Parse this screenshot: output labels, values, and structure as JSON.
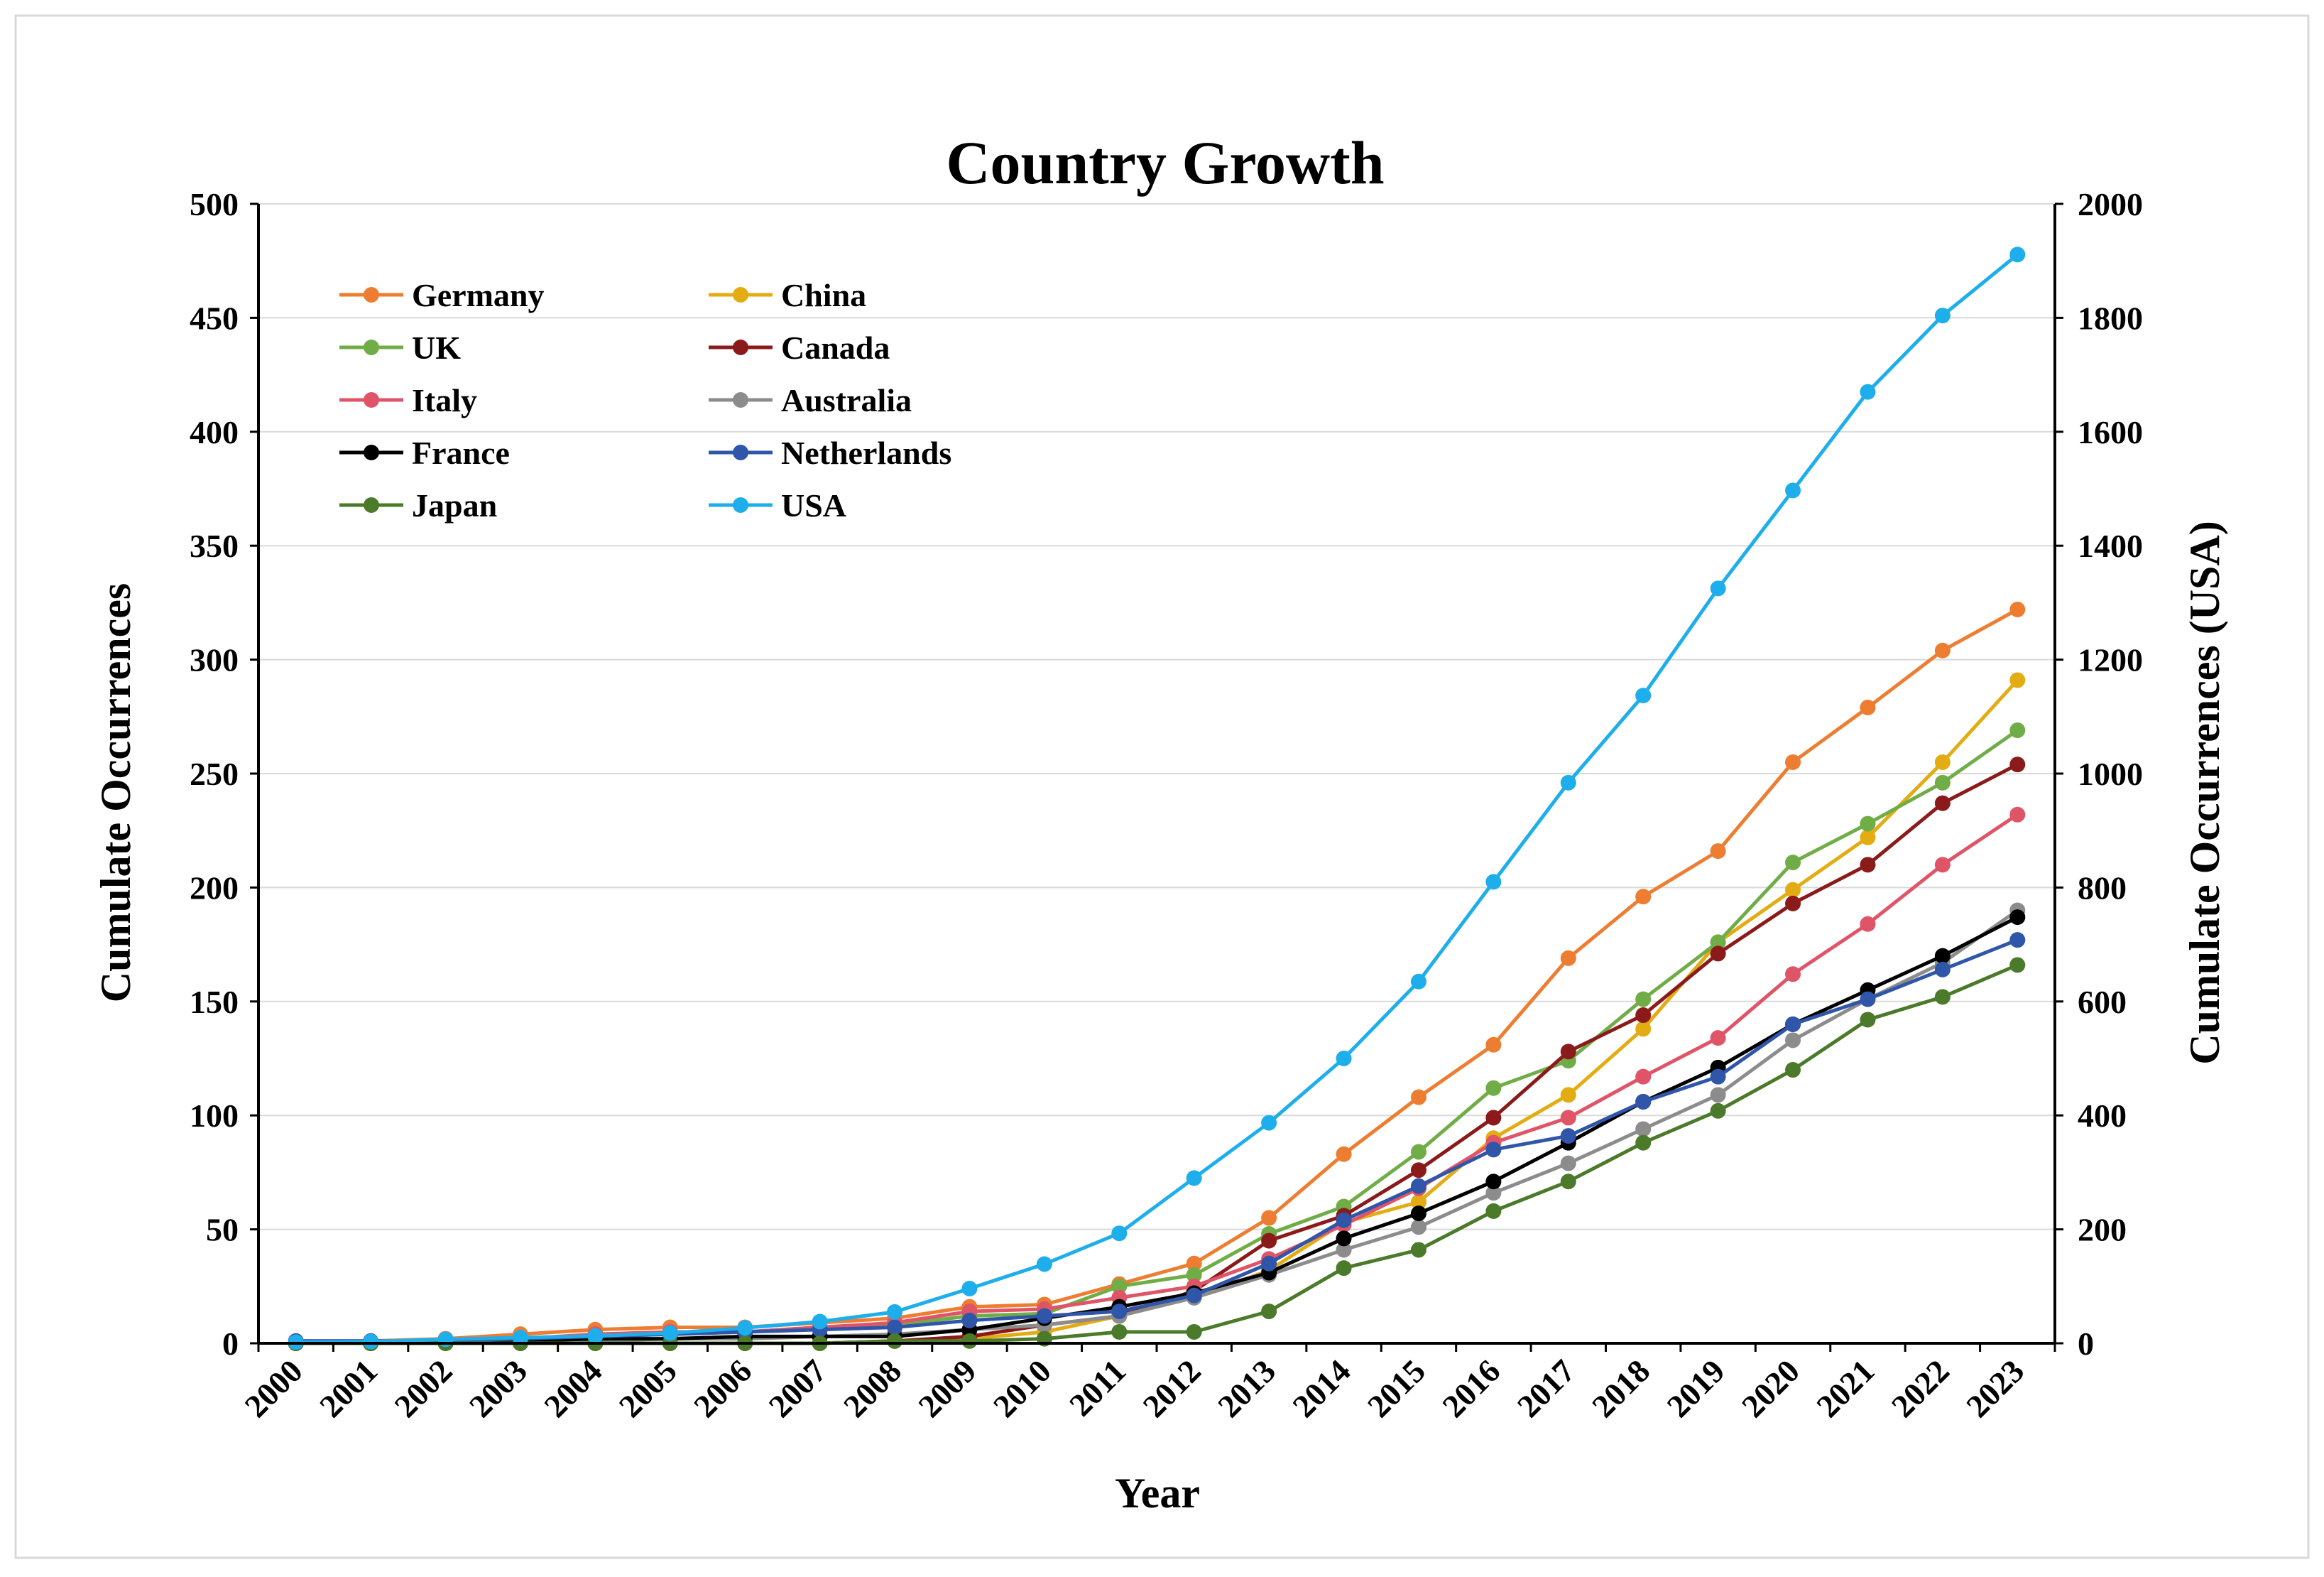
{
  "chart_data": {
    "type": "line",
    "title": "Country Growth",
    "xlabel": "Year",
    "ylabel": "Cumulate Occurrences",
    "y2label": "Cumulate Occurrences (USA)",
    "ylim": [
      0,
      500
    ],
    "y2lim": [
      0,
      2000
    ],
    "yticks": [
      0,
      50,
      100,
      150,
      200,
      250,
      300,
      350,
      400,
      450,
      500
    ],
    "y2ticks": [
      0,
      200,
      400,
      600,
      800,
      1000,
      1200,
      1400,
      1600,
      1800,
      2000
    ],
    "grid": true,
    "legend_position": "top-left",
    "x": [
      "2000",
      "2001",
      "2002",
      "2003",
      "2004",
      "2005",
      "2006",
      "2007",
      "2008",
      "2009",
      "2010",
      "2011",
      "2012",
      "2013",
      "2014",
      "2015",
      "2016",
      "2017",
      "2018",
      "2019",
      "2020",
      "2021",
      "2022",
      "2023"
    ],
    "series": [
      {
        "name": "Germany",
        "color": "#ED7D31",
        "axis": "left",
        "values": [
          1,
          1,
          2,
          4,
          6,
          7,
          7,
          9,
          11,
          16,
          17,
          26,
          35,
          55,
          83,
          108,
          131,
          169,
          196,
          216,
          255,
          279,
          304,
          322
        ]
      },
      {
        "name": "China",
        "color": "#E3AC12",
        "axis": "left",
        "values": [
          0,
          0,
          0,
          0,
          0,
          0,
          0,
          0,
          1,
          2,
          5,
          12,
          20,
          32,
          53,
          62,
          90,
          109,
          138,
          176,
          199,
          222,
          255,
          291
        ]
      },
      {
        "name": "UK",
        "color": "#70AD47",
        "axis": "left",
        "values": [
          0,
          0,
          1,
          2,
          3,
          4,
          5,
          7,
          8,
          12,
          13,
          25,
          30,
          48,
          60,
          84,
          112,
          124,
          151,
          176,
          211,
          228,
          246,
          269
        ]
      },
      {
        "name": "Canada",
        "color": "#8B1A1A",
        "axis": "left",
        "values": [
          0,
          0,
          0,
          0,
          0,
          0,
          0,
          0,
          1,
          3,
          8,
          12,
          23,
          45,
          56,
          76,
          99,
          128,
          144,
          171,
          193,
          210,
          237,
          254
        ]
      },
      {
        "name": "Italy",
        "color": "#E05468",
        "axis": "left",
        "values": [
          0,
          0,
          1,
          2,
          4,
          5,
          5,
          7,
          9,
          14,
          15,
          20,
          25,
          37,
          52,
          68,
          88,
          99,
          117,
          134,
          162,
          184,
          210,
          232
        ]
      },
      {
        "name": "Australia",
        "color": "#8C8C8C",
        "axis": "left",
        "values": [
          0,
          0,
          0,
          1,
          1,
          2,
          2,
          3,
          4,
          6,
          8,
          12,
          20,
          30,
          41,
          51,
          66,
          79,
          94,
          109,
          133,
          151,
          167,
          190
        ]
      },
      {
        "name": "France",
        "color": "#000000",
        "axis": "left",
        "values": [
          0,
          0,
          1,
          1,
          2,
          2,
          3,
          3,
          3,
          6,
          11,
          16,
          22,
          31,
          46,
          57,
          71,
          88,
          106,
          121,
          140,
          155,
          170,
          187
        ]
      },
      {
        "name": "Netherlands",
        "color": "#2F56A8",
        "axis": "left",
        "values": [
          1,
          1,
          1,
          2,
          3,
          4,
          5,
          6,
          7,
          10,
          12,
          14,
          21,
          35,
          54,
          69,
          85,
          91,
          106,
          117,
          140,
          151,
          164,
          177
        ]
      },
      {
        "name": "Japan",
        "color": "#4A7A2A",
        "axis": "left",
        "values": [
          0,
          0,
          0,
          0,
          0,
          0,
          0,
          0,
          1,
          1,
          2,
          5,
          5,
          14,
          33,
          41,
          58,
          71,
          88,
          102,
          120,
          142,
          152,
          166
        ]
      },
      {
        "name": "USA",
        "color": "#1EAEEB",
        "axis": "right",
        "values": [
          2,
          3,
          7,
          10,
          13,
          18,
          27,
          38,
          55,
          96,
          139,
          193,
          290,
          387,
          500,
          635,
          810,
          984,
          1137,
          1325,
          1497,
          1670,
          1804,
          1911
        ]
      }
    ]
  }
}
